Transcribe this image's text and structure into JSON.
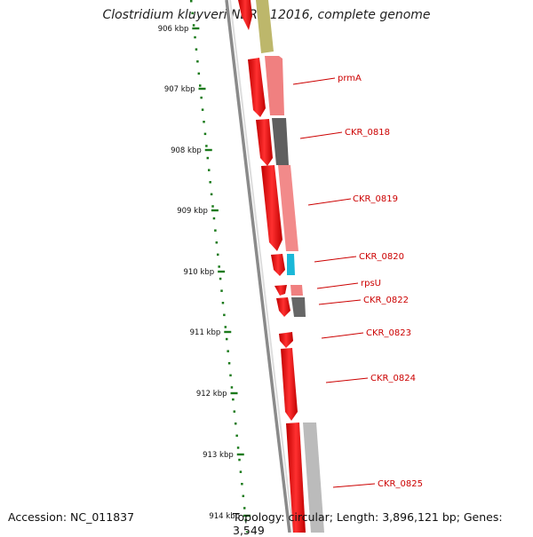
{
  "title": "Clostridium kluyveri NBRC 12016, complete genome",
  "accession": "Accession: NC_011837",
  "topology": "Topology: circular; Length: 3,896,121 bp; Genes: 3,549",
  "scale_labels": [
    "906 kbp",
    "907 kbp",
    "908 kbp",
    "909 kbp",
    "910 kbp",
    "911 kbp",
    "912 kbp",
    "913 kbp",
    "914 kbp"
  ],
  "gene_labels": [
    "prmA",
    "CKR_0818",
    "CKR_0819",
    "CKR_0820",
    "rpsU",
    "CKR_0822",
    "CKR_0823",
    "CKR_0824",
    "CKR_0825"
  ],
  "colors": {
    "gene_arrow": "#ff0000",
    "label_text": "#cc0000",
    "tick": "#1b7a1b",
    "backbone": "#777777",
    "cog_olive": "#bdb76b",
    "cog_pink": "#f08080",
    "cog_dark": "#666666",
    "cog_cyan": "#1ab8d8",
    "cog_light": "#bbbbbb"
  }
}
